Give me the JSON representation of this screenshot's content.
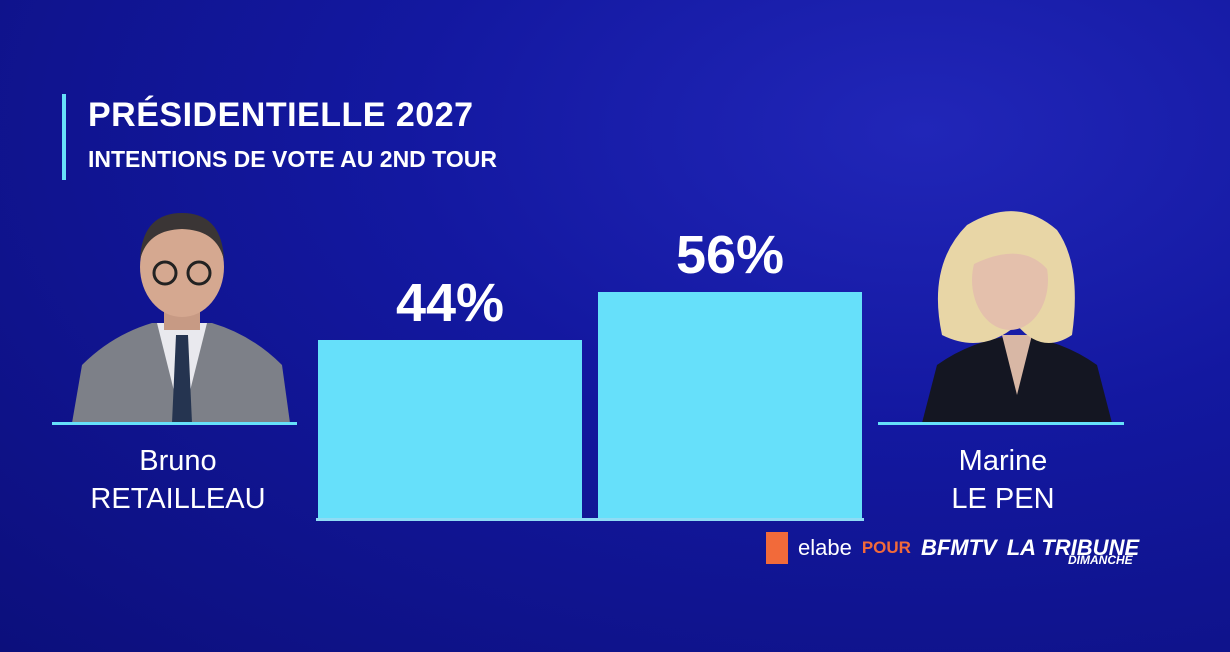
{
  "chart_data": {
    "type": "bar",
    "title": "PRÉSIDENTIELLE 2027",
    "subtitle": "INTENTIONS DE VOTE AU 2ND TOUR",
    "categories": [
      "Bruno\nRETAILLEAU",
      "Marine\nLE PEN"
    ],
    "values": [
      44,
      56
    ],
    "value_labels": [
      "44%",
      "56%"
    ],
    "color": "#66e0fa",
    "source": {
      "pollster": "elabe",
      "for": "POUR",
      "media": [
        "BFMTV",
        "LA TRIBUNE"
      ],
      "media_sub": "DIMANCHE"
    }
  }
}
